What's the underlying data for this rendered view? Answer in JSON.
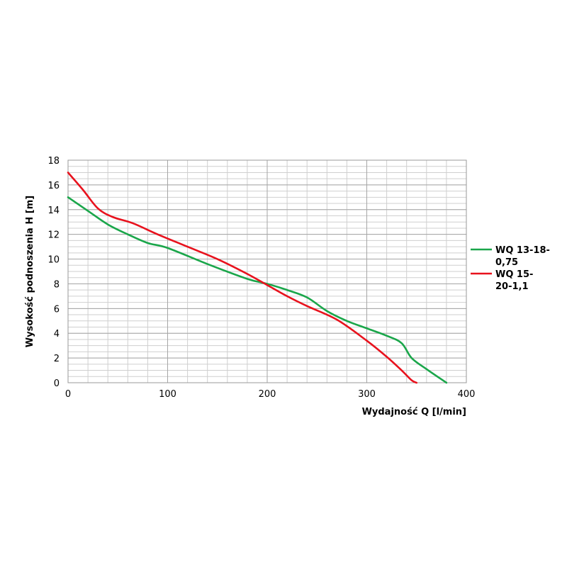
{
  "chart_data": {
    "type": "line",
    "xlabel": "Wydajność Q [l/min]",
    "ylabel": "Wysokość podnoszenia H [m]",
    "xlim": [
      0,
      400
    ],
    "ylim": [
      0,
      18
    ],
    "xticks": [
      0,
      100,
      200,
      300,
      400
    ],
    "yticks": [
      0,
      2,
      4,
      6,
      8,
      10,
      12,
      14,
      16,
      18
    ],
    "grid": true,
    "legend_position": "right",
    "series": [
      {
        "name": "WQ 13-18-0,75",
        "name_lines": [
          "WQ 13-18-",
          "0,75"
        ],
        "color": "#1aa64a",
        "x": [
          0,
          20,
          40,
          60,
          80,
          100,
          140,
          180,
          200,
          220,
          240,
          260,
          280,
          300,
          320,
          335,
          345,
          360,
          380
        ],
        "y": [
          15,
          13.9,
          12.8,
          12.0,
          11.3,
          10.9,
          9.6,
          8.4,
          8.0,
          7.5,
          6.9,
          5.8,
          5.0,
          4.4,
          3.8,
          3.2,
          2.0,
          1.1,
          0
        ]
      },
      {
        "name": "WQ 15-20-1,1",
        "name_lines": [
          "WQ 15-",
          "20-1,1"
        ],
        "color": "#e8121d",
        "x": [
          0,
          15,
          30,
          45,
          65,
          90,
          120,
          150,
          180,
          200,
          220,
          240,
          270,
          300,
          320,
          335,
          345,
          350
        ],
        "y": [
          17,
          15.6,
          14.1,
          13.4,
          12.9,
          12.0,
          11.0,
          10.0,
          8.8,
          7.9,
          7.0,
          6.2,
          5.1,
          3.4,
          2.1,
          1.0,
          0.2,
          0
        ]
      }
    ]
  }
}
